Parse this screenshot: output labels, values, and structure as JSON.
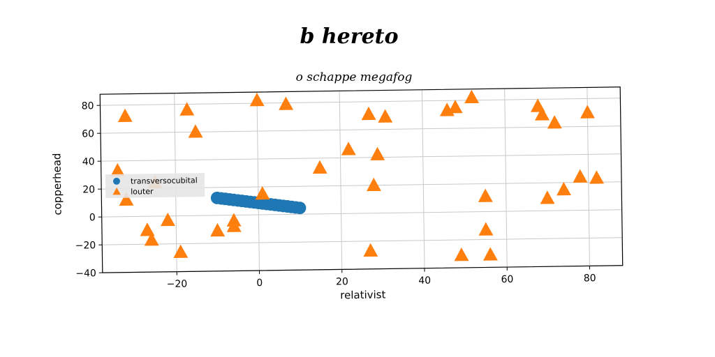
{
  "chart_data": {
    "type": "scatter",
    "title": "b hereto",
    "subtitle": "o schappe megafog",
    "xlabel": "relativist",
    "ylabel": "copperhead",
    "xlim": [
      -38,
      88
    ],
    "ylim": [
      -40,
      88
    ],
    "xticks": [
      -20,
      0,
      20,
      40,
      60,
      80
    ],
    "yticks": [
      -40,
      -20,
      0,
      20,
      40,
      60,
      80
    ],
    "xtick_labels": [
      "−20",
      "0",
      "20",
      "40",
      "60",
      "80"
    ],
    "ytick_labels": [
      "−40",
      "−20",
      "0",
      "20",
      "40",
      "60",
      "80"
    ],
    "grid": true,
    "legend_position": "center-left",
    "series": [
      {
        "name": "transversocubital",
        "marker": "circle",
        "color": "#1f77b4",
        "x": [
          -10,
          -9,
          -8,
          -7,
          -6,
          -5,
          -4,
          -3,
          -2,
          -1,
          0,
          1,
          2,
          3,
          4,
          5,
          6,
          7,
          8,
          9,
          10
        ],
        "y": [
          12.5,
          12.1,
          11.7,
          11.3,
          10.9,
          10.5,
          10.1,
          9.7,
          9.3,
          8.9,
          8.5,
          8.1,
          7.7,
          7.3,
          6.9,
          6.5,
          6.1,
          5.7,
          5.3,
          4.9,
          4.5
        ]
      },
      {
        "name": "louter",
        "marker": "triangle",
        "color": "#ff7f0e",
        "x": [
          -32,
          -17,
          -15,
          0,
          7,
          27,
          31,
          46,
          48,
          52,
          68,
          69,
          72,
          80,
          -34,
          -25,
          -32,
          -27,
          -26,
          -22,
          -19,
          -10,
          -6,
          -6,
          1,
          15,
          22,
          29,
          28,
          27,
          49,
          55,
          55,
          56,
          70,
          74,
          78,
          82
        ],
        "y": [
          72,
          76,
          60,
          82,
          79,
          71,
          69,
          73,
          75,
          82,
          75,
          69,
          63,
          70,
          33,
          24,
          12,
          -10,
          -17,
          -3,
          -26,
          -11,
          -4,
          -8,
          15,
          33,
          46,
          42,
          20,
          -27,
          -31,
          11,
          -13,
          -31,
          9,
          15,
          24,
          23
        ]
      }
    ]
  }
}
